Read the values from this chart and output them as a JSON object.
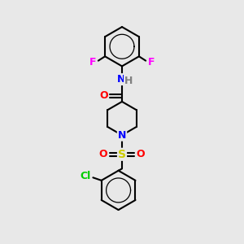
{
  "bg_color": "#e8e8e8",
  "bond_color": "#000000",
  "atom_colors": {
    "F": "#ff00ff",
    "N": "#0000ff",
    "O": "#ff0000",
    "S": "#cccc00",
    "Cl": "#00cc00",
    "H": "#808080",
    "C": "#000000"
  },
  "font_size": 9,
  "line_width": 1.5
}
